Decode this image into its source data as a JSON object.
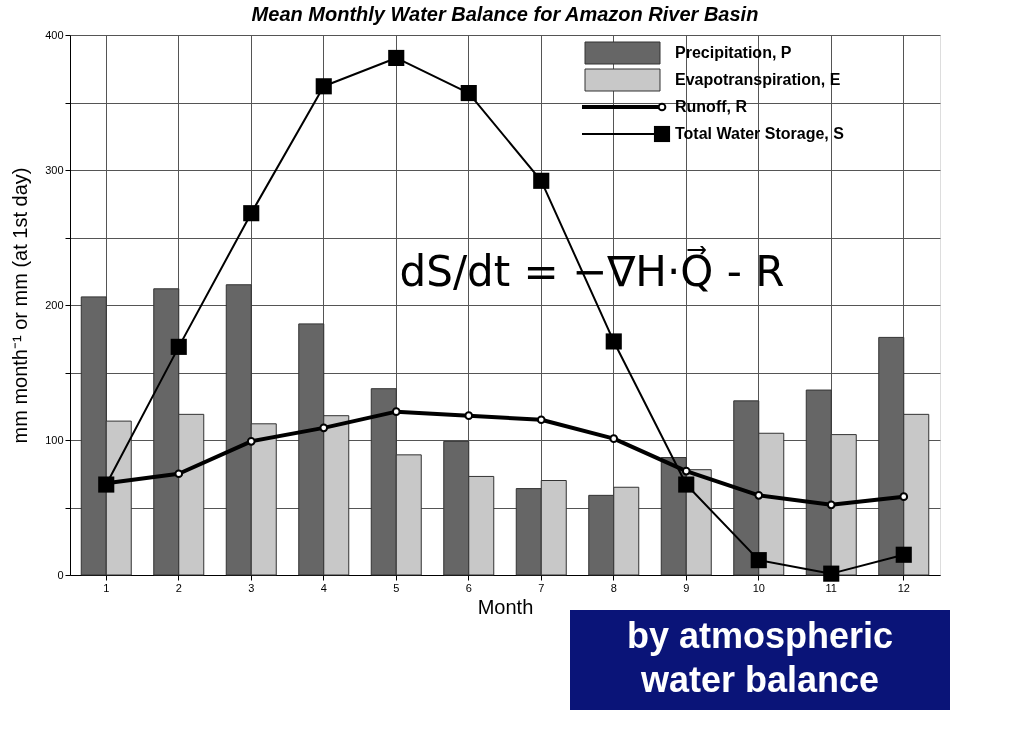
{
  "chart_data": {
    "type": "bar",
    "title": "Mean Monthly Water Balance for Amazon River Basin",
    "xlabel": "Month",
    "ylabel": "mm month⁻¹ or mm (at 1st day)",
    "categories": [
      "1",
      "2",
      "3",
      "4",
      "5",
      "6",
      "7",
      "8",
      "9",
      "10",
      "11",
      "12"
    ],
    "series": [
      {
        "name": "Precipitation, P",
        "color": "#666666",
        "values": [
          206,
          212,
          215,
          186,
          138,
          99,
          64,
          59,
          87,
          129,
          137,
          176
        ]
      },
      {
        "name": "Evapotranspiration, E",
        "color": "#c8c8c8",
        "values": [
          114,
          119,
          112,
          118,
          89,
          73,
          70,
          65,
          78,
          105,
          104,
          119
        ]
      },
      {
        "name": "Runoff, R",
        "type": "line",
        "marker": "circle",
        "color": "#000000",
        "values": [
          68,
          75,
          99,
          109,
          121,
          118,
          115,
          101,
          77,
          59,
          52,
          58
        ]
      },
      {
        "name": "Total Water Storage, S",
        "type": "line",
        "marker": "square",
        "color": "#000000",
        "values": [
          67,
          169,
          268,
          362,
          383,
          357,
          292,
          173,
          67,
          11,
          1,
          15
        ]
      }
    ],
    "ylim": [
      0,
      400
    ],
    "yticks": [
      0,
      {
        "value": 50,
        "label": null
      },
      100,
      {
        "value": 150,
        "label": null
      },
      200,
      {
        "value": 250,
        "label": null
      },
      300,
      {
        "value": 350,
        "label": null
      },
      400
    ],
    "grid": true,
    "legend": "top right",
    "annotations": [
      "dS/dt = −∇H·Q⃗ - R",
      "by atmospheric water balance"
    ]
  }
}
